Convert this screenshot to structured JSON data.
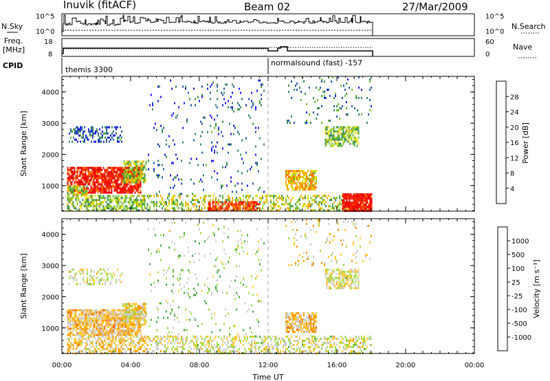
{
  "header": {
    "station": "Inuvik (fitACF)",
    "beam": "Beam 02",
    "date": "27/Mar/2009"
  },
  "panels": {
    "nsky": {
      "label": "N.Sky",
      "right_label": "N.Search",
      "ticks_left": [
        "10^5",
        "10^0"
      ],
      "ticks_right": [
        "10^5",
        "10^0"
      ]
    },
    "freq": {
      "label_1": "Freq.",
      "label_2": "[MHz]",
      "right_label": "Nave",
      "ticks_left": [
        "18",
        "8"
      ],
      "ticks_right": [
        "60",
        "0"
      ]
    },
    "cpid": {
      "label": "CPID",
      "mode_1": "themis 3300",
      "mode_2": "normalsound (fast) -157",
      "mode_switch_hour": 12
    }
  },
  "colors": {
    "power": [
      "#1a1aff",
      "#2255aa",
      "#338855",
      "#66bb33",
      "#dddd00",
      "#ffaa00",
      "#ff7700",
      "#ff3300",
      "#ee0000"
    ],
    "velocity": [
      "#ff0000",
      "#ff6600",
      "#ff9900",
      "#ffcc33",
      "#cccccc",
      "#99dd44",
      "#44aa44",
      "#3366bb",
      "#2222cc"
    ]
  },
  "chart_data": [
    {
      "type": "heatmap",
      "title": "",
      "xlabel": "",
      "ylabel": "Slant Range [km]",
      "xlim": [
        0,
        24
      ],
      "ylim": [
        180,
        4500
      ],
      "yticks": [
        "1000",
        "2000",
        "3000",
        "4000"
      ],
      "colorbar": {
        "label": "Power [dB]",
        "ticks": [
          "4",
          "8",
          "12",
          "16",
          "20",
          "24",
          "28"
        ],
        "range": [
          0,
          30
        ]
      },
      "regions": [
        {
          "x": [
            0.3,
            4.6
          ],
          "y": [
            800,
            1600
          ],
          "value": 27,
          "density": 0.85
        },
        {
          "x": [
            0.3,
            1.5
          ],
          "y": [
            700,
            1000
          ],
          "value": 14,
          "density": 0.8
        },
        {
          "x": [
            3.5,
            4.9
          ],
          "y": [
            1100,
            1800
          ],
          "value": 14,
          "density": 0.75
        },
        {
          "x": [
            0.3,
            5.0
          ],
          "y": [
            180,
            700
          ],
          "value": 12,
          "density": 0.55
        },
        {
          "x": [
            5.0,
            18.0
          ],
          "y": [
            180,
            700
          ],
          "value": 14,
          "density": 0.4
        },
        {
          "x": [
            8.5,
            11.5
          ],
          "y": [
            180,
            500
          ],
          "value": 24,
          "density": 0.65
        },
        {
          "x": [
            16.3,
            18.0
          ],
          "y": [
            180,
            750
          ],
          "value": 28,
          "density": 0.85
        },
        {
          "x": [
            13.0,
            14.8
          ],
          "y": [
            900,
            1500
          ],
          "value": 18,
          "density": 0.75
        },
        {
          "x": [
            15.3,
            17.3
          ],
          "y": [
            2300,
            2900
          ],
          "value": 12,
          "density": 0.65
        },
        {
          "x": [
            0.4,
            3.5
          ],
          "y": [
            2400,
            2900
          ],
          "value": 5,
          "density": 0.35
        },
        {
          "x": [
            5.0,
            11.8
          ],
          "y": [
            700,
            4400
          ],
          "value": 5,
          "density": 0.05
        },
        {
          "x": [
            13.0,
            18.0
          ],
          "y": [
            3000,
            4500
          ],
          "value": 8,
          "density": 0.07
        }
      ]
    },
    {
      "type": "heatmap",
      "title": "",
      "xlabel": "Time UT",
      "ylabel": "Slant Range [km]",
      "xlim": [
        0,
        24
      ],
      "ylim": [
        180,
        4500
      ],
      "xticks": [
        "00:00",
        "04:00",
        "08:00",
        "12:00",
        "16:00",
        "20:00",
        "00:00"
      ],
      "yticks": [
        "1000",
        "2000",
        "3000",
        "4000"
      ],
      "colorbar": {
        "label": "Velocity [m s⁻¹]",
        "ticks": [
          "1000",
          "500",
          "100",
          "25",
          "-25",
          "-100",
          "-500",
          "-1000"
        ],
        "range": [
          -1200,
          1200
        ]
      },
      "regions": [
        {
          "x": [
            0.3,
            4.6
          ],
          "y": [
            800,
            1600
          ],
          "value": -300,
          "density": 0.85
        },
        {
          "x": [
            3.5,
            4.9
          ],
          "y": [
            1100,
            1800
          ],
          "value": -150,
          "density": 0.75
        },
        {
          "x": [
            0.3,
            5.0
          ],
          "y": [
            180,
            750
          ],
          "value": -250,
          "density": 0.5
        },
        {
          "x": [
            5.0,
            18.0
          ],
          "y": [
            180,
            750
          ],
          "value": 0,
          "density": 0.4
        },
        {
          "x": [
            13.0,
            14.8
          ],
          "y": [
            900,
            1500
          ],
          "value": -300,
          "density": 0.7
        },
        {
          "x": [
            15.3,
            17.3
          ],
          "y": [
            2300,
            2900
          ],
          "value": 0,
          "density": 0.6
        },
        {
          "x": [
            0.4,
            3.5
          ],
          "y": [
            2400,
            2900
          ],
          "value": 0,
          "density": 0.3
        },
        {
          "x": [
            5.0,
            11.8
          ],
          "y": [
            700,
            4400
          ],
          "value": 200,
          "density": 0.05
        },
        {
          "x": [
            13.0,
            18.0
          ],
          "y": [
            3000,
            4500
          ],
          "value": -200,
          "density": 0.06
        }
      ]
    }
  ]
}
